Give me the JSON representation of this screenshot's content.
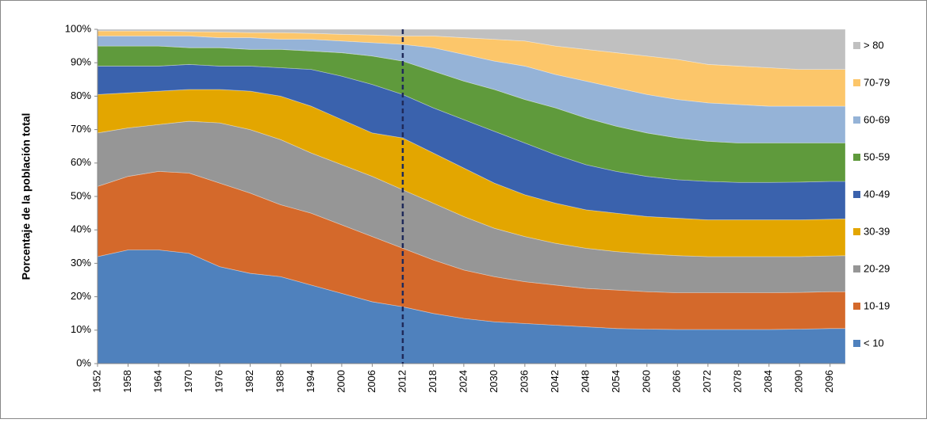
{
  "chart_data": {
    "type": "stacked_area",
    "y_label": "Porcentaje de la población total",
    "x": [
      1952,
      1958,
      1964,
      1970,
      1976,
      1982,
      1988,
      1994,
      2000,
      2006,
      2012,
      2018,
      2024,
      2030,
      2036,
      2042,
      2048,
      2054,
      2060,
      2066,
      2072,
      2078,
      2084,
      2090,
      2096,
      2099
    ],
    "xlim": [
      1952,
      2099
    ],
    "xticks": [
      1952,
      1958,
      1964,
      1970,
      1976,
      1982,
      1988,
      1994,
      2000,
      2006,
      2012,
      2018,
      2024,
      2030,
      2036,
      2042,
      2048,
      2054,
      2060,
      2066,
      2072,
      2078,
      2084,
      2090,
      2096
    ],
    "ylim": [
      0,
      100
    ],
    "yticks": [
      {
        "value": 0,
        "label": "0%"
      },
      {
        "value": 10,
        "label": "10%"
      },
      {
        "value": 20,
        "label": "20%"
      },
      {
        "value": 30,
        "label": "30%"
      },
      {
        "value": 40,
        "label": "40%"
      },
      {
        "value": 50,
        "label": "50%"
      },
      {
        "value": 60,
        "label": "60%"
      },
      {
        "value": 70,
        "label": "70%"
      },
      {
        "value": 80,
        "label": "80%"
      },
      {
        "value": 90,
        "label": "90%"
      },
      {
        "value": 100,
        "label": "100%"
      }
    ],
    "reference_x": 2012,
    "legend": "right",
    "series": [
      {
        "name": "< 10",
        "color": "#4f81bd",
        "values": [
          32,
          34,
          34,
          33,
          29,
          27,
          26,
          23.5,
          21,
          18.5,
          17,
          15,
          13.5,
          12.5,
          12,
          11.5,
          11,
          10.5,
          10.3,
          10.2,
          10.2,
          10.2,
          10.2,
          10.3,
          10.5,
          10.5
        ]
      },
      {
        "name": "10-19",
        "color": "#d4692b",
        "values": [
          21,
          22,
          23.5,
          24,
          25,
          24,
          21.5,
          21.5,
          20.5,
          19.5,
          17.5,
          16,
          14.5,
          13.5,
          12.5,
          12,
          11.5,
          11.5,
          11.2,
          11,
          11,
          11,
          11,
          11,
          11,
          11
        ]
      },
      {
        "name": "20-29",
        "color": "#969696",
        "values": [
          16,
          14.5,
          14,
          15.5,
          18,
          19,
          19.5,
          18,
          18,
          18,
          17.5,
          17,
          16,
          14.5,
          13.5,
          12.5,
          12,
          11.5,
          11.3,
          11.1,
          10.8,
          10.8,
          10.8,
          10.7,
          10.7,
          10.8
        ]
      },
      {
        "name": "30-39",
        "color": "#e3a600",
        "values": [
          11.5,
          10.5,
          10,
          9.5,
          10,
          11.5,
          13,
          14,
          13.5,
          13,
          15.5,
          15,
          14.5,
          13.5,
          12.5,
          12,
          11.5,
          11.5,
          11.2,
          11.2,
          11,
          11,
          11,
          11,
          11,
          11
        ]
      },
      {
        "name": "40-49",
        "color": "#3a62ad",
        "values": [
          8.5,
          8,
          7.5,
          7.5,
          7,
          7.5,
          8.5,
          11,
          13,
          14.5,
          13,
          13.5,
          14.5,
          15.5,
          15.5,
          14.5,
          13.5,
          12.5,
          12,
          11.5,
          11.5,
          11.2,
          11.2,
          11.3,
          11.3,
          11.2
        ]
      },
      {
        "name": "50-59",
        "color": "#5f9a3c",
        "values": [
          6,
          6,
          6,
          5,
          5.5,
          5,
          5.5,
          5.5,
          7,
          8.5,
          10,
          11,
          11.5,
          12.5,
          13,
          14,
          14,
          13.5,
          13,
          12.5,
          12,
          11.8,
          11.8,
          11.7,
          11.5,
          11.5
        ]
      },
      {
        "name": "60-69",
        "color": "#95b3d7",
        "values": [
          3,
          3,
          3,
          3.5,
          3,
          3.5,
          3,
          3.5,
          3.5,
          4,
          5,
          7,
          8,
          8.5,
          10,
          10,
          11,
          11.5,
          11.5,
          11.5,
          11.5,
          11.5,
          11,
          11,
          11,
          11
        ]
      },
      {
        "name": "70-79",
        "color": "#fcc66a",
        "values": [
          1.5,
          1.5,
          1.5,
          1.3,
          1.7,
          1.5,
          2,
          1.8,
          2,
          2.3,
          2.5,
          3.5,
          5,
          6.5,
          7.5,
          8.5,
          9.5,
          10.5,
          11.5,
          12,
          11.5,
          11.5,
          11.5,
          11,
          11,
          11
        ]
      },
      {
        "name": "> 80",
        "color": "#c0c0c0",
        "values": [
          0.5,
          0.5,
          0.5,
          0.7,
          0.8,
          1,
          1,
          1.2,
          1.5,
          1.7,
          2,
          2,
          2.5,
          3,
          3.5,
          5,
          6,
          7,
          8,
          9,
          10.5,
          11,
          11.5,
          12,
          12,
          12
        ]
      }
    ]
  }
}
